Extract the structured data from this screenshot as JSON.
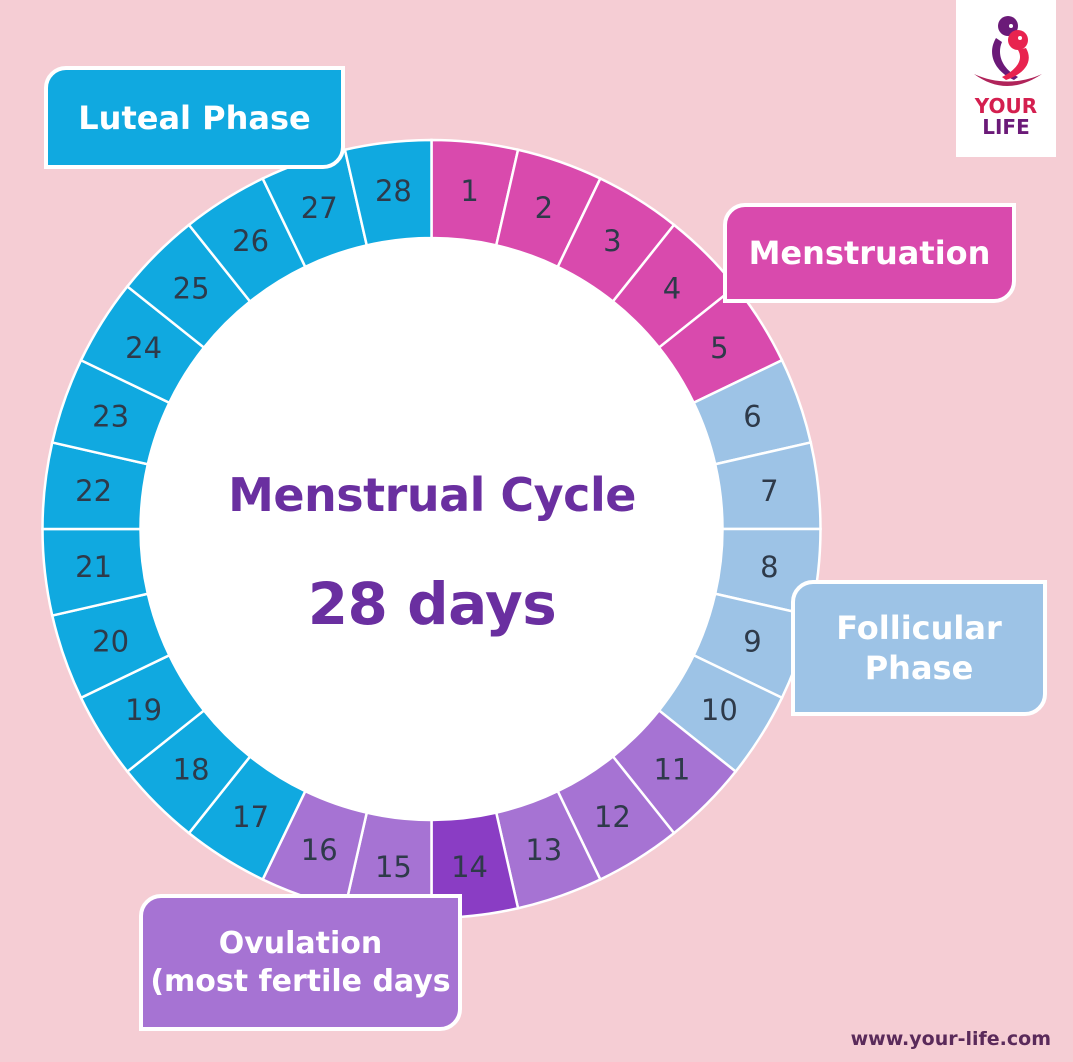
{
  "title": "Menstrual Cycle",
  "subtitle": "28 days",
  "logo": {
    "line1": "YOUR",
    "line2": "LIFE",
    "icon": "two-figures-embrace-icon",
    "colors": {
      "purple": "#6b1a78",
      "red": "#e8234f"
    }
  },
  "footer": {
    "url": "www.your-life.com"
  },
  "colors": {
    "background": "#f5cdd4",
    "menstruation": "#d94aad",
    "follicular": "#9dc3e6",
    "ovulation": "#a673d3",
    "ovulation_peak": "#8a3dc4",
    "luteal": "#10a9e0",
    "center_text": "#6a2fa0",
    "day_number": "#2e3a4a"
  },
  "phases": {
    "luteal": {
      "label": "Luteal Phase",
      "days": [
        17,
        28
      ]
    },
    "menstruation": {
      "label": "Menstruation",
      "days": [
        1,
        5
      ]
    },
    "follicular": {
      "label_line1": "Follicular",
      "label_line2": "Phase",
      "days": [
        6,
        10
      ]
    },
    "ovulation": {
      "label_line1": "Ovulation",
      "label_line2": "(most fertile days",
      "days": [
        11,
        16
      ],
      "peak_day": 14
    }
  },
  "days": [
    {
      "n": 1,
      "phase": "menstruation"
    },
    {
      "n": 2,
      "phase": "menstruation"
    },
    {
      "n": 3,
      "phase": "menstruation"
    },
    {
      "n": 4,
      "phase": "menstruation"
    },
    {
      "n": 5,
      "phase": "menstruation"
    },
    {
      "n": 6,
      "phase": "follicular"
    },
    {
      "n": 7,
      "phase": "follicular"
    },
    {
      "n": 8,
      "phase": "follicular"
    },
    {
      "n": 9,
      "phase": "follicular"
    },
    {
      "n": 10,
      "phase": "follicular"
    },
    {
      "n": 11,
      "phase": "ovulation"
    },
    {
      "n": 12,
      "phase": "ovulation"
    },
    {
      "n": 13,
      "phase": "ovulation"
    },
    {
      "n": 14,
      "phase": "ovulation_peak"
    },
    {
      "n": 15,
      "phase": "ovulation"
    },
    {
      "n": 16,
      "phase": "ovulation"
    },
    {
      "n": 17,
      "phase": "luteal"
    },
    {
      "n": 18,
      "phase": "luteal"
    },
    {
      "n": 19,
      "phase": "luteal"
    },
    {
      "n": 20,
      "phase": "luteal"
    },
    {
      "n": 21,
      "phase": "luteal"
    },
    {
      "n": 22,
      "phase": "luteal"
    },
    {
      "n": 23,
      "phase": "luteal"
    },
    {
      "n": 24,
      "phase": "luteal"
    },
    {
      "n": 25,
      "phase": "luteal"
    },
    {
      "n": 26,
      "phase": "luteal"
    },
    {
      "n": 27,
      "phase": "luteal"
    },
    {
      "n": 28,
      "phase": "luteal"
    }
  ]
}
